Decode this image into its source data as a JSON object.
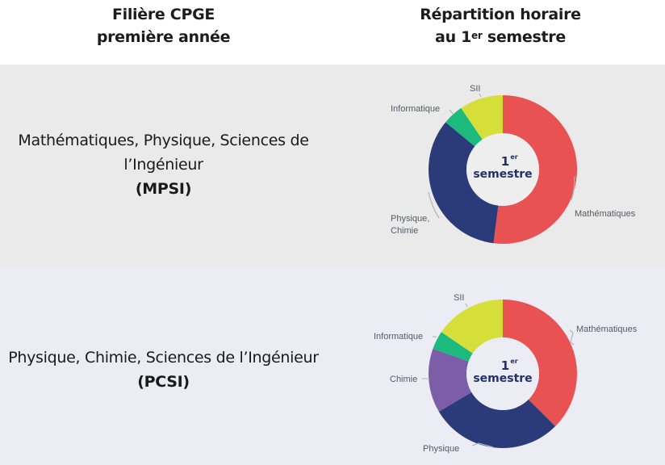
{
  "header": {
    "left_line1": "Filière CPGE",
    "left_line2": "première année",
    "right_line1": "Répartition horaire",
    "right_line2_pre": "au 1",
    "right_line2_sup": "er",
    "right_line2_post": " semestre"
  },
  "rows": [
    {
      "title": "Mathématiques, Physique, Sciences de l’Ingénieur",
      "title_line1": "Mathématiques, Physique, Sciences de",
      "title_line2": "l’Ingénieur",
      "code": "(MPSI)"
    },
    {
      "title": "Physique, Chimie, Sciences de l’Ingénieur",
      "title_line1": "Physique, Chimie, Sciences de l’Ingénieur",
      "code": "(PCSI)"
    }
  ],
  "donut_center": {
    "line1": "1",
    "line1_sup": "er",
    "line2": "semestre"
  },
  "colors": {
    "mathematiques": "#e85252",
    "physique": "#2b3a78",
    "chimie": "#7b5ea7",
    "informatique": "#1dba7e",
    "sii": "#d6df3a",
    "center_text": "#22306b",
    "row_mpsi_bg": "#eaeaea",
    "row_pcsi_bg": "#ececf4"
  },
  "chart_data": [
    {
      "type": "pie",
      "title": "MPSI – Répartition horaire au 1er semestre",
      "center_label": "1er semestre",
      "categories": [
        "Mathématiques",
        "Physique, Chimie",
        "Informatique",
        "SII"
      ],
      "values": [
        52,
        34,
        4.5,
        9.5
      ],
      "unit": "% (estimated from slice angles)",
      "colors": [
        "#e85252",
        "#2b3a78",
        "#1dba7e",
        "#d6df3a"
      ],
      "donut": true
    },
    {
      "type": "pie",
      "title": "PCSI – Répartition horaire au 1er semestre",
      "center_label": "1er semestre",
      "categories": [
        "Mathématiques",
        "Physique",
        "Chimie",
        "Informatique",
        "SII"
      ],
      "values": [
        37.5,
        29,
        14,
        4,
        15.5
      ],
      "unit": "% (estimated from slice angles)",
      "colors": [
        "#e85252",
        "#2b3a78",
        "#7b5ea7",
        "#1dba7e",
        "#d6df3a"
      ],
      "donut": true
    }
  ],
  "labels_mpsi": {
    "mathematiques": "Mathématiques",
    "physique_1": "Physique,",
    "physique_2": "Chimie",
    "informatique": "Informatique",
    "sii": "SII"
  },
  "labels_pcsi": {
    "mathematiques": "Mathématiques",
    "physique": "Physique",
    "chimie": "Chimie",
    "informatique": "Informatique",
    "sii": "SII"
  }
}
